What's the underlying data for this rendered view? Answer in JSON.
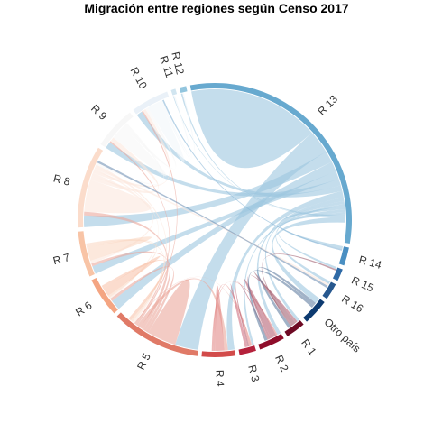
{
  "chart_data": {
    "type": "chord",
    "title": "Migración entre regiones según Censo 2017",
    "sectors": [
      {
        "name": "R 13",
        "size": 34,
        "color": "#67a9cf"
      },
      {
        "name": "R 14",
        "size": 2.4,
        "color": "#4a8fc2"
      },
      {
        "name": "R 15",
        "size": 1.6,
        "color": "#2f6aa6"
      },
      {
        "name": "R 16",
        "size": 2.2,
        "color": "#27588f"
      },
      {
        "name": "Otro país",
        "size": 3.4,
        "color": "#0d3a70"
      },
      {
        "name": "R 1",
        "size": 2.6,
        "color": "#6e0a24"
      },
      {
        "name": "R 2",
        "size": 3.4,
        "color": "#8e0d2a"
      },
      {
        "name": "R 3",
        "size": 2.2,
        "color": "#b5223c"
      },
      {
        "name": "R 4",
        "size": 4.4,
        "color": "#d24b4a"
      },
      {
        "name": "R 5",
        "size": 11.8,
        "color": "#e07a67"
      },
      {
        "name": "R 6",
        "size": 5.2,
        "color": "#f4a582"
      },
      {
        "name": "R 7",
        "size": 6.0,
        "color": "#f8c4a6"
      },
      {
        "name": "R 8",
        "size": 10.8,
        "color": "#fbdccb"
      },
      {
        "name": "R 9",
        "size": 5.6,
        "color": "#f7f7f7"
      },
      {
        "name": "R 10",
        "size": 5.0,
        "color": "#eaf1f8"
      },
      {
        "name": "R 11",
        "size": 0.6,
        "color": "#d1e5f0"
      },
      {
        "name": "R 12",
        "size": 0.9,
        "color": "#92c5de"
      }
    ],
    "flows": [
      {
        "from": "R 13",
        "to": "R 13",
        "value": 9.0
      },
      {
        "from": "R 13",
        "to": "R 5",
        "value": 3.2
      },
      {
        "from": "R 13",
        "to": "R 8",
        "value": 1.6
      },
      {
        "from": "R 13",
        "to": "R 6",
        "value": 1.4
      },
      {
        "from": "R 13",
        "to": "R 7",
        "value": 1.1
      },
      {
        "from": "R 13",
        "to": "R 9",
        "value": 0.9
      },
      {
        "from": "R 13",
        "to": "R 10",
        "value": 0.8
      },
      {
        "from": "R 13",
        "to": "R 4",
        "value": 0.9
      },
      {
        "from": "R 13",
        "to": "R 2",
        "value": 0.5
      },
      {
        "from": "R 13",
        "to": "R 1",
        "value": 0.4
      },
      {
        "from": "R 13",
        "to": "R 3",
        "value": 0.3
      },
      {
        "from": "R 13",
        "to": "R 14",
        "value": 0.4
      },
      {
        "from": "R 13",
        "to": "R 16",
        "value": 0.4
      },
      {
        "from": "R 13",
        "to": "R 15",
        "value": 0.3
      },
      {
        "from": "R 13",
        "to": "R 12",
        "value": 0.2
      },
      {
        "from": "R 13",
        "to": "R 11",
        "value": 0.1
      },
      {
        "from": "R 13",
        "to": "Otro país",
        "value": 0.8
      },
      {
        "from": "R 5",
        "to": "R 5",
        "value": 2.0
      },
      {
        "from": "R 5",
        "to": "R 6",
        "value": 0.4
      },
      {
        "from": "R 5",
        "to": "R 7",
        "value": 0.4
      },
      {
        "from": "R 5",
        "to": "R 8",
        "value": 0.5
      },
      {
        "from": "R 5",
        "to": "R 4",
        "value": 0.5
      },
      {
        "from": "R 5",
        "to": "R 10",
        "value": 0.2
      },
      {
        "from": "R 5",
        "to": "R 9",
        "value": 0.2
      },
      {
        "from": "R 5",
        "to": "R 3",
        "value": 0.1
      },
      {
        "from": "R 8",
        "to": "R 8",
        "value": 2.2
      },
      {
        "from": "R 8",
        "to": "R 9",
        "value": 0.6
      },
      {
        "from": "R 8",
        "to": "R 7",
        "value": 0.4
      },
      {
        "from": "R 8",
        "to": "R 10",
        "value": 0.4
      },
      {
        "from": "R 8",
        "to": "R 6",
        "value": 0.2
      },
      {
        "from": "R 8",
        "to": "R 16",
        "value": 0.3
      },
      {
        "from": "R 8",
        "to": "R 5",
        "value": 0.3
      },
      {
        "from": "R 7",
        "to": "R 7",
        "value": 0.9
      },
      {
        "from": "R 7",
        "to": "R 6",
        "value": 0.3
      },
      {
        "from": "R 7",
        "to": "R 5",
        "value": 0.3
      },
      {
        "from": "R 6",
        "to": "R 6",
        "value": 0.6
      },
      {
        "from": "R 6",
        "to": "R 5",
        "value": 0.4
      },
      {
        "from": "R 9",
        "to": "R 9",
        "value": 1.0
      },
      {
        "from": "R 9",
        "to": "R 10",
        "value": 0.4
      },
      {
        "from": "R 9",
        "to": "R 8",
        "value": 0.3
      },
      {
        "from": "R 10",
        "to": "R 10",
        "value": 0.9
      },
      {
        "from": "R 10",
        "to": "R 11",
        "value": 0.2
      },
      {
        "from": "R 10",
        "to": "R 12",
        "value": 0.2
      },
      {
        "from": "R 4",
        "to": "R 4",
        "value": 0.6
      },
      {
        "from": "R 4",
        "to": "R 3",
        "value": 0.3
      },
      {
        "from": "R 4",
        "to": "R 2",
        "value": 0.2
      },
      {
        "from": "R 2",
        "to": "R 2",
        "value": 0.4
      },
      {
        "from": "R 2",
        "to": "R 1",
        "value": 0.3
      },
      {
        "from": "R 2",
        "to": "R 3",
        "value": 0.2
      },
      {
        "from": "R 1",
        "to": "R 1",
        "value": 0.3
      },
      {
        "from": "R 1",
        "to": "R 15",
        "value": 0.2
      },
      {
        "from": "R 3",
        "to": "R 3",
        "value": 0.2
      },
      {
        "from": "Otro país",
        "to": "R 1",
        "value": 0.4
      },
      {
        "from": "Otro país",
        "to": "R 2",
        "value": 0.4
      },
      {
        "from": "R 14",
        "to": "R 10",
        "value": 0.2
      },
      {
        "from": "R 16",
        "to": "R 8",
        "value": 0.3
      }
    ]
  }
}
